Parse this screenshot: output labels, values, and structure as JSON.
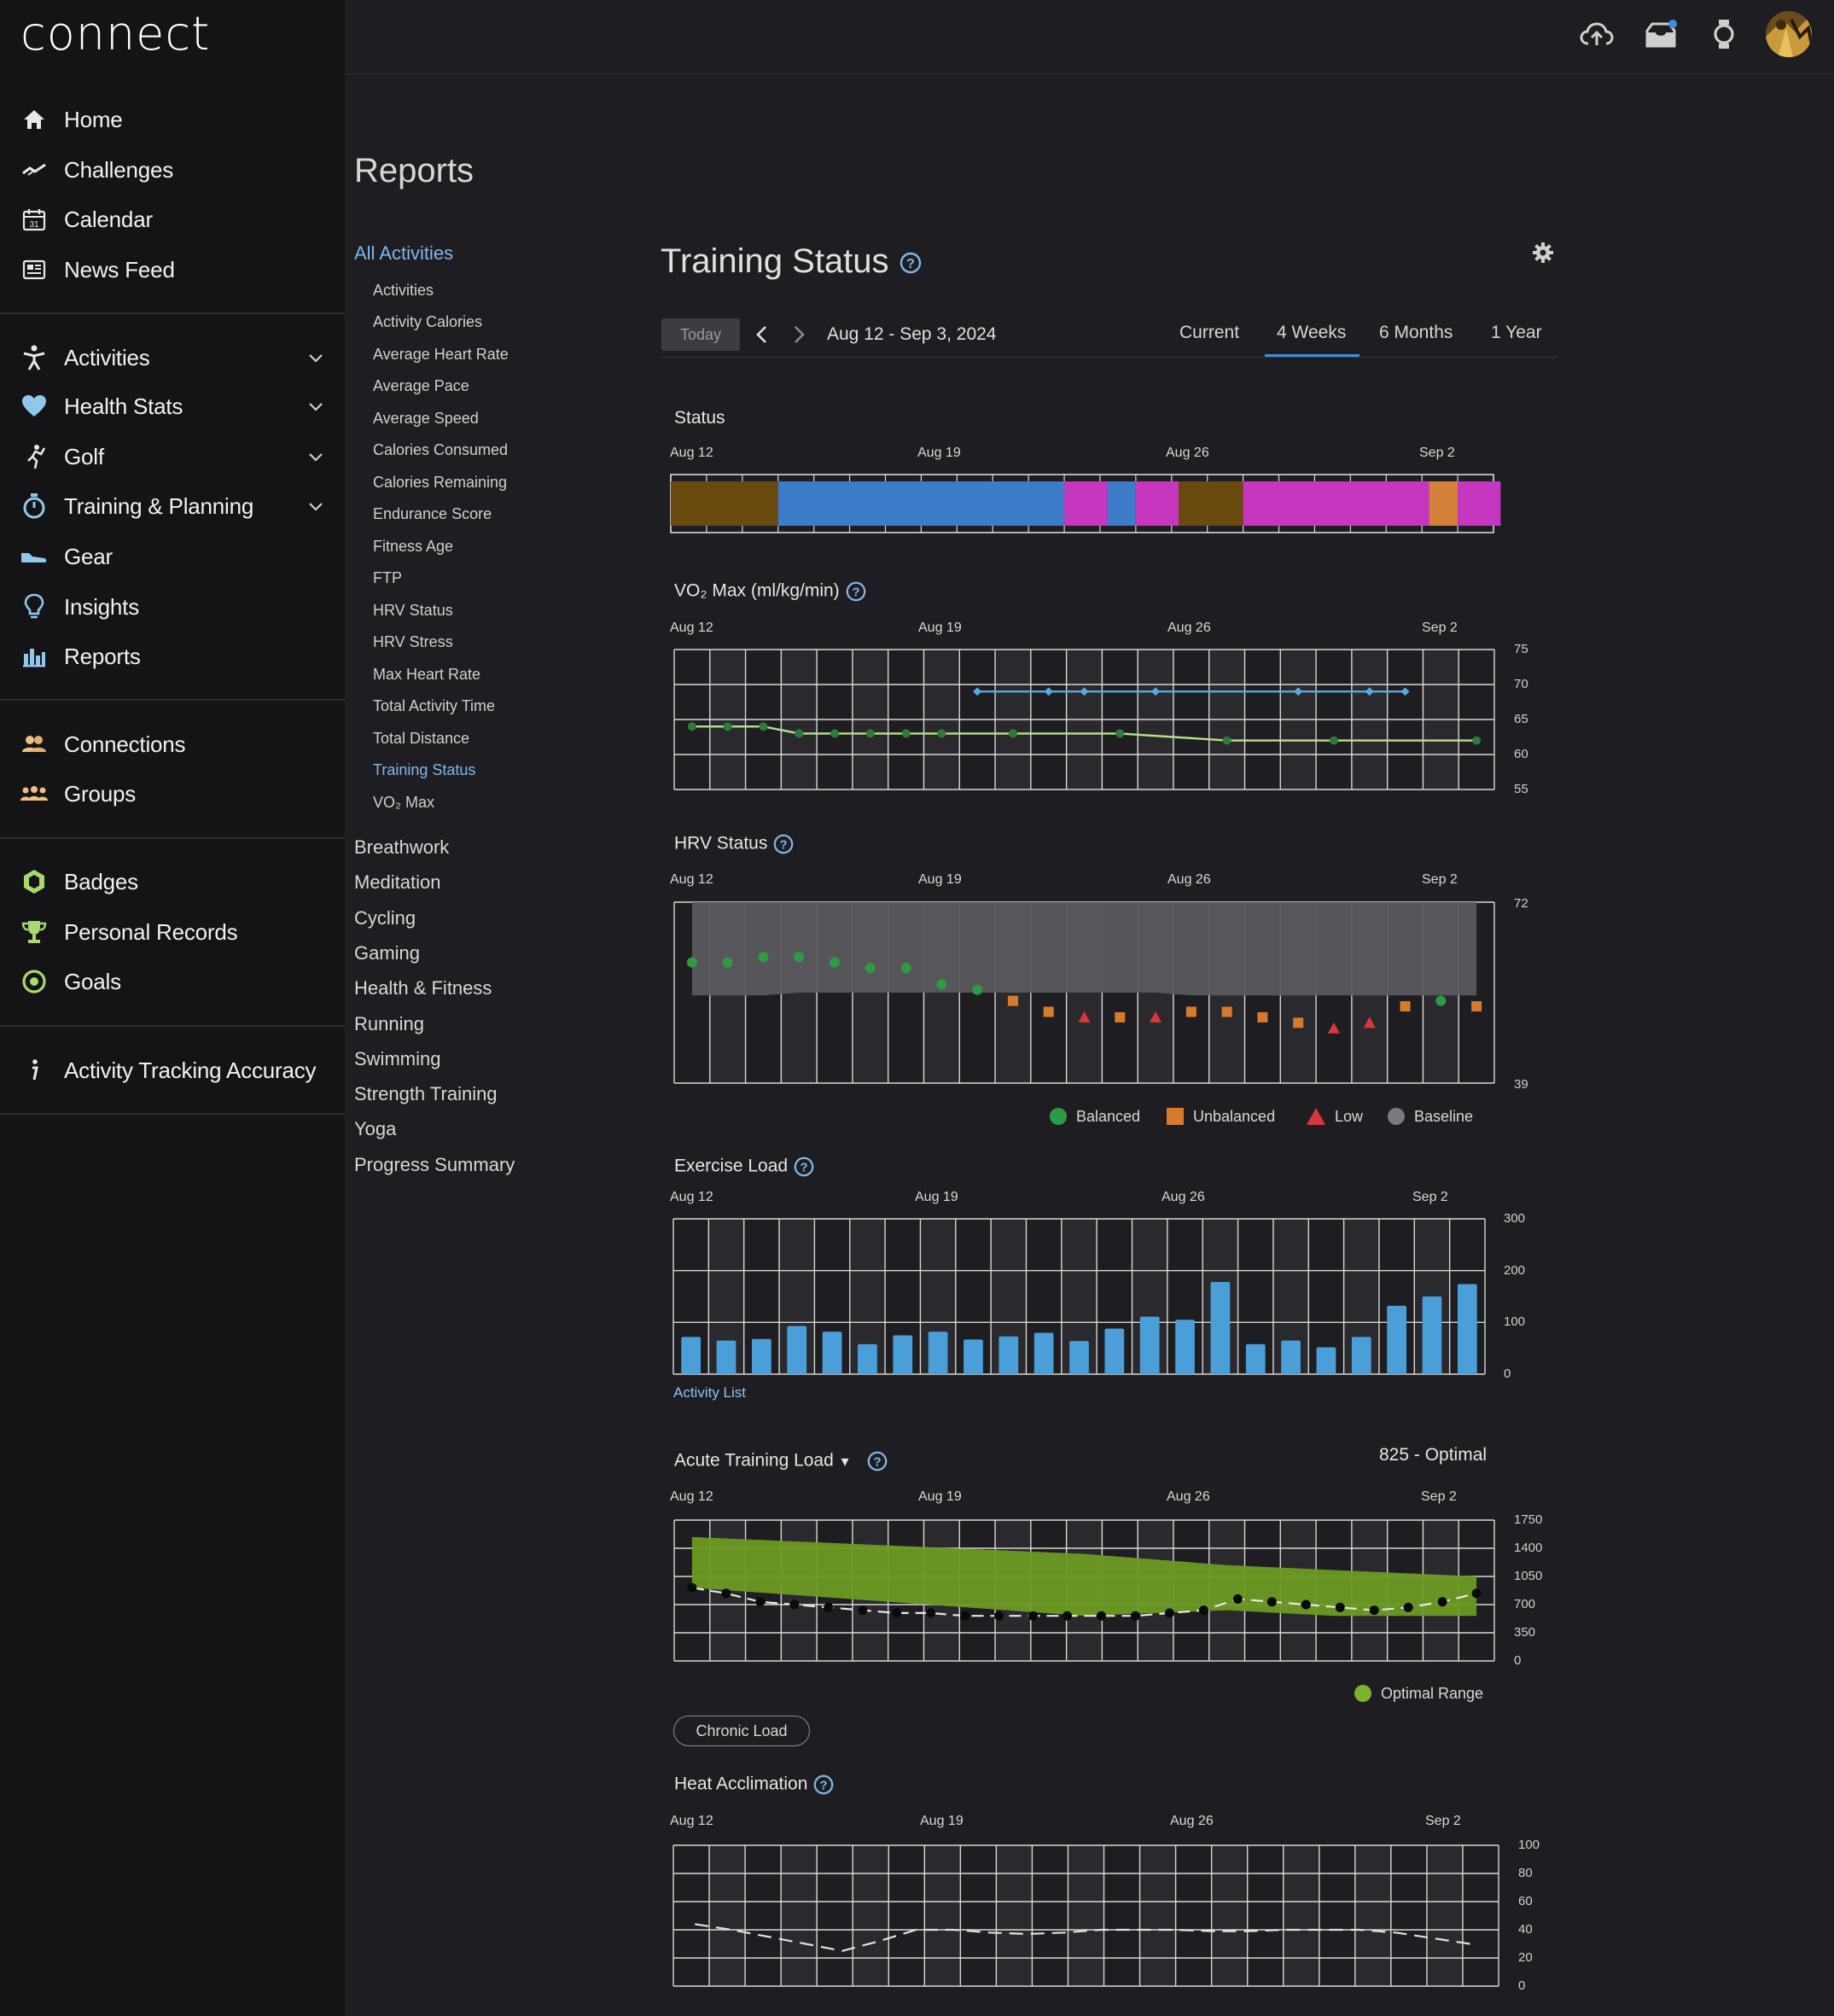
{
  "app": {
    "logo": "connect"
  },
  "sidebar": {
    "group1": [
      {
        "label": "Home",
        "icon": "home-icon"
      },
      {
        "label": "Challenges",
        "icon": "challenges-icon"
      },
      {
        "label": "Calendar",
        "icon": "calendar-icon"
      },
      {
        "label": "News Feed",
        "icon": "news-feed-icon"
      }
    ],
    "group2": [
      {
        "label": "Activities",
        "icon": "activities-icon",
        "expandable": true
      },
      {
        "label": "Health Stats",
        "icon": "heart-icon",
        "expandable": true
      },
      {
        "label": "Golf",
        "icon": "golf-icon",
        "expandable": true
      },
      {
        "label": "Training & Planning",
        "icon": "stopwatch-icon",
        "expandable": true
      },
      {
        "label": "Gear",
        "icon": "shoe-icon"
      },
      {
        "label": "Insights",
        "icon": "lightbulb-icon"
      },
      {
        "label": "Reports",
        "icon": "bar-chart-icon"
      }
    ],
    "group3": [
      {
        "label": "Connections",
        "icon": "connections-icon"
      },
      {
        "label": "Groups",
        "icon": "groups-icon"
      }
    ],
    "group4": [
      {
        "label": "Badges",
        "icon": "badge-icon"
      },
      {
        "label": "Personal Records",
        "icon": "trophy-icon"
      },
      {
        "label": "Goals",
        "icon": "goal-icon"
      }
    ],
    "group5": [
      {
        "label": "Activity Tracking Accuracy",
        "icon": "info-icon"
      }
    ]
  },
  "topbar": {
    "icons": [
      "upload-cloud-icon",
      "inbox-icon",
      "watch-icon",
      "avatar"
    ]
  },
  "reports": {
    "title": "Reports",
    "all_activities": "All Activities",
    "sub_items": [
      "Activities",
      "Activity Calories",
      "Average Heart Rate",
      "Average Pace",
      "Average Speed",
      "Calories Consumed",
      "Calories Remaining",
      "Endurance Score",
      "Fitness Age",
      "FTP",
      "HRV Status",
      "HRV Stress",
      "Max Heart Rate",
      "Total Activity Time",
      "Total Distance",
      "Training Status",
      "VO₂ Max"
    ],
    "active_sub": "Training Status",
    "categories": [
      "Breathwork",
      "Meditation",
      "Cycling",
      "Gaming",
      "Health & Fitness",
      "Running",
      "Swimming",
      "Strength Training",
      "Yoga",
      "Progress Summary"
    ]
  },
  "main": {
    "title": "Training Status",
    "today_label": "Today",
    "date_range": "Aug 12 - Sep 3, 2024",
    "tabs": [
      "Current",
      "4 Weeks",
      "6 Months",
      "1 Year"
    ],
    "active_tab": "4 Weeks",
    "date_ticks": [
      "Aug 12",
      "Aug 19",
      "Aug 26",
      "Sep 2"
    ],
    "accent_color": "#3f8fd6"
  },
  "chart_data": [
    {
      "type": "bar",
      "title": "Status",
      "segments": [
        {
          "days": 3,
          "color": "#6b4a0f"
        },
        {
          "days": 8,
          "color": "#3e7bc8"
        },
        {
          "days": 1.2,
          "color": "#c637c0"
        },
        {
          "days": 0.8,
          "color": "#3e7bc8"
        },
        {
          "days": 1.2,
          "color": "#c637c0"
        },
        {
          "days": 1.8,
          "color": "#6b4a0f"
        },
        {
          "days": 5.2,
          "color": "#c637c0"
        },
        {
          "days": 0.8,
          "color": "#d2803a"
        },
        {
          "days": 1.2,
          "color": "#c637c0"
        }
      ]
    },
    {
      "type": "line",
      "title": "VO₂ Max (ml/kg/min)",
      "y_ticks": [
        "75",
        "70",
        "65",
        "60",
        "55"
      ],
      "ylim": [
        55,
        75
      ],
      "series": [
        {
          "color": "#5aa8e0",
          "points": [
            [
              8.5,
              69
            ],
            [
              10.5,
              69
            ],
            [
              11.5,
              69
            ],
            [
              13.5,
              69
            ],
            [
              17.5,
              69
            ],
            [
              19.5,
              69
            ],
            [
              20.5,
              69
            ]
          ]
        },
        {
          "color": "#b9e08a",
          "points": [
            [
              0.5,
              64
            ],
            [
              1.5,
              64
            ],
            [
              2.5,
              64
            ],
            [
              3.5,
              63
            ],
            [
              4.5,
              63
            ],
            [
              5.5,
              63
            ],
            [
              6.5,
              63
            ],
            [
              7.5,
              63
            ],
            [
              9.5,
              63
            ],
            [
              12.5,
              63
            ],
            [
              15.5,
              62
            ],
            [
              18.5,
              62
            ],
            [
              22.5,
              62
            ]
          ]
        }
      ]
    },
    {
      "type": "scatter",
      "title": "HRV Status",
      "y_ticks": [
        "72",
        "39"
      ],
      "ylim": [
        39,
        72
      ],
      "baseline": {
        "color": "#5a5a5e",
        "upper": [
          [
            0.5,
            72
          ],
          [
            22.5,
            72
          ]
        ],
        "lower": [
          [
            0.5,
            55
          ],
          [
            2.5,
            55
          ],
          [
            3.5,
            55.5
          ],
          [
            13.5,
            55.5
          ],
          [
            14.5,
            55
          ],
          [
            22.5,
            55
          ]
        ]
      },
      "points": [
        {
          "x": 0.5,
          "y": 61,
          "status": "balanced"
        },
        {
          "x": 1.5,
          "y": 61,
          "status": "balanced"
        },
        {
          "x": 2.5,
          "y": 62,
          "status": "balanced"
        },
        {
          "x": 3.5,
          "y": 62,
          "status": "balanced"
        },
        {
          "x": 4.5,
          "y": 61,
          "status": "balanced"
        },
        {
          "x": 5.5,
          "y": 60,
          "status": "balanced"
        },
        {
          "x": 6.5,
          "y": 60,
          "status": "balanced"
        },
        {
          "x": 7.5,
          "y": 57,
          "status": "balanced"
        },
        {
          "x": 8.5,
          "y": 56,
          "status": "balanced"
        },
        {
          "x": 9.5,
          "y": 54,
          "status": "unbalanced"
        },
        {
          "x": 10.5,
          "y": 52,
          "status": "unbalanced"
        },
        {
          "x": 11.5,
          "y": 51,
          "status": "low"
        },
        {
          "x": 12.5,
          "y": 51,
          "status": "unbalanced"
        },
        {
          "x": 13.5,
          "y": 51,
          "status": "low"
        },
        {
          "x": 14.5,
          "y": 52,
          "status": "unbalanced"
        },
        {
          "x": 15.5,
          "y": 52,
          "status": "unbalanced"
        },
        {
          "x": 16.5,
          "y": 51,
          "status": "unbalanced"
        },
        {
          "x": 17.5,
          "y": 50,
          "status": "unbalanced"
        },
        {
          "x": 18.5,
          "y": 49,
          "status": "low"
        },
        {
          "x": 19.5,
          "y": 50,
          "status": "low"
        },
        {
          "x": 20.5,
          "y": 53,
          "status": "unbalanced"
        },
        {
          "x": 21.5,
          "y": 54,
          "status": "balanced"
        },
        {
          "x": 22.5,
          "y": 53,
          "status": "unbalanced"
        }
      ],
      "legend": [
        {
          "label": "Balanced",
          "shape": "circle",
          "color": "#2e9a45"
        },
        {
          "label": "Unbalanced",
          "shape": "square",
          "color": "#d67a2e"
        },
        {
          "label": "Low",
          "shape": "triangle",
          "color": "#d9363e"
        },
        {
          "label": "Baseline",
          "shape": "circle",
          "color": "#7a7a7e"
        }
      ]
    },
    {
      "type": "bar",
      "title": "Exercise Load",
      "y_ticks": [
        "300",
        "200",
        "100",
        "0"
      ],
      "ylim": [
        0,
        300
      ],
      "values": [
        72,
        65,
        68,
        93,
        82,
        58,
        75,
        82,
        67,
        73,
        80,
        64,
        88,
        111,
        105,
        178,
        58,
        65,
        52,
        72,
        132,
        150,
        174
      ],
      "bar_color": "#4a9fd8",
      "link": "Activity List"
    },
    {
      "type": "area",
      "title": "Acute Training Load",
      "value_label": "825 - Optimal",
      "y_ticks": [
        "1750",
        "1400",
        "1050",
        "700",
        "350",
        "0"
      ],
      "ylim": [
        0,
        1750
      ],
      "optimal_range": {
        "upper": [
          [
            0.5,
            1540
          ],
          [
            11.5,
            1330
          ],
          [
            15.5,
            1190
          ],
          [
            22.5,
            1050
          ]
        ],
        "lower": [
          [
            0.5,
            910
          ],
          [
            11.5,
            560
          ],
          [
            15.5,
            630
          ],
          [
            18.5,
            560
          ],
          [
            22.5,
            560
          ]
        ]
      },
      "values": [
        910,
        840,
        735,
        700,
        665,
        630,
        595,
        595,
        560,
        560,
        560,
        560,
        560,
        560,
        595,
        630,
        770,
        735,
        700,
        665,
        630,
        665,
        735,
        840
      ],
      "legend": [
        {
          "label": "Optimal Range",
          "color": "#7cb32c"
        }
      ],
      "button": "Chronic Load"
    },
    {
      "type": "line",
      "title": "Heat Acclimation",
      "y_ticks": [
        "100",
        "80",
        "60",
        "40",
        "20",
        "0"
      ],
      "ylim": [
        0,
        100
      ],
      "values": [
        44,
        40,
        35,
        30,
        25,
        32,
        40,
        40,
        38,
        37,
        38,
        40,
        40,
        40,
        39,
        39,
        40,
        40,
        40,
        38,
        34,
        30
      ]
    }
  ]
}
